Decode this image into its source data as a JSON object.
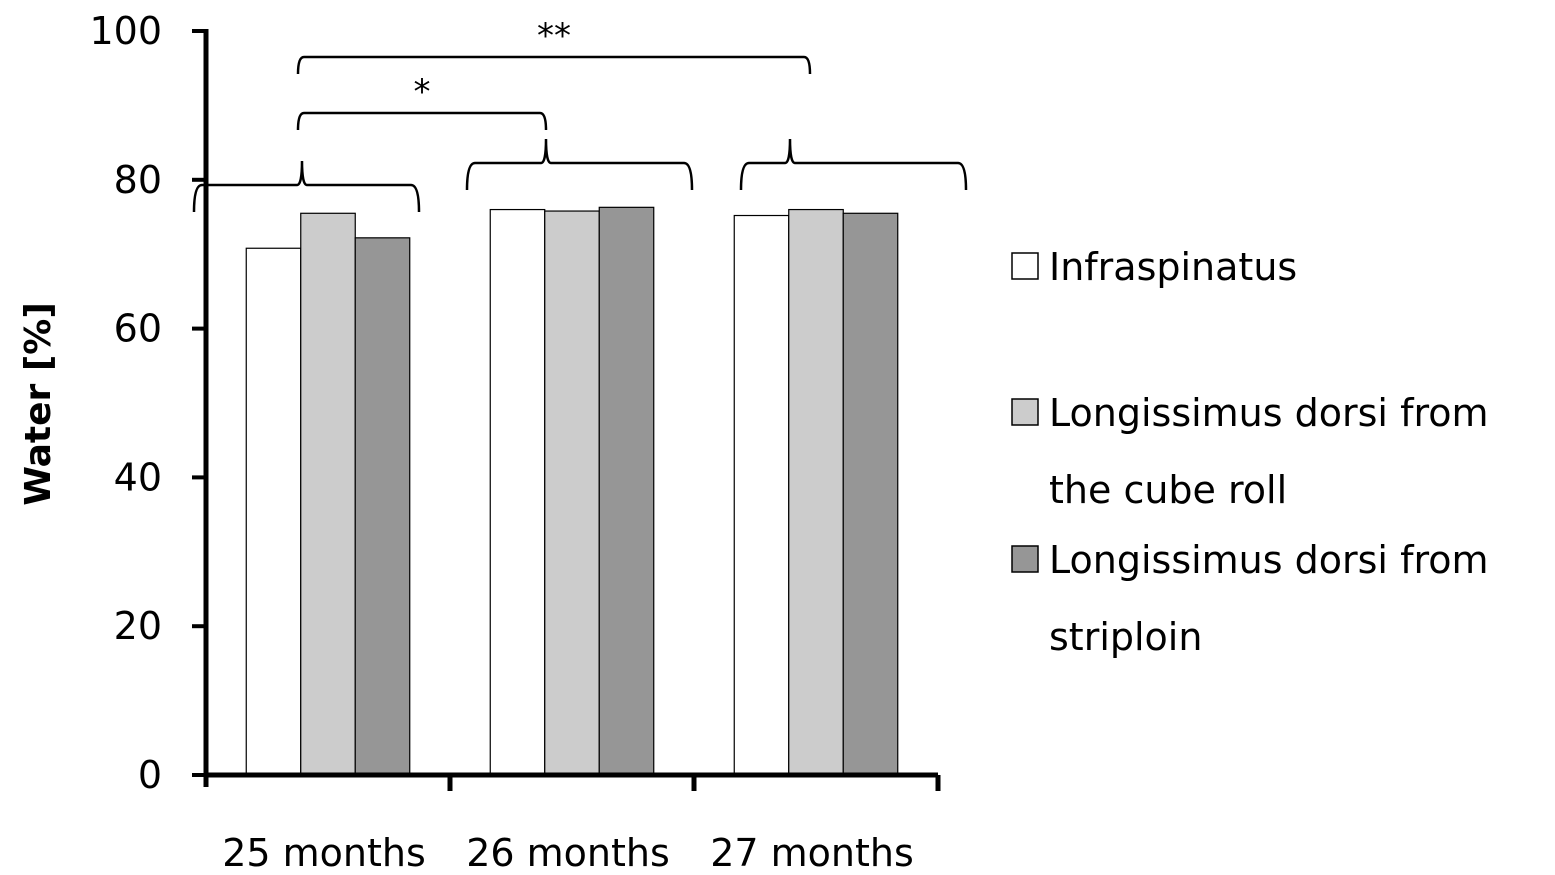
{
  "chart_data": {
    "type": "bar",
    "categories": [
      "25 months",
      "26 months",
      "27 months"
    ],
    "series": [
      {
        "name": "Infraspinatus",
        "values": [
          70.8,
          76.0,
          75.2
        ],
        "color": "#ffffff"
      },
      {
        "name": "Longissimus dorsi from the cube roll",
        "values": [
          75.5,
          75.8,
          76.0
        ],
        "color": "#cccccc"
      },
      {
        "name": "Longissimus dorsi from striploin",
        "values": [
          72.2,
          76.3,
          75.5
        ],
        "color": "#969696"
      }
    ],
    "legend_lines": [
      [
        "Infraspinatus"
      ],
      [
        "Longissimus dorsi from",
        "the cube roll"
      ],
      [
        "Longissimus dorsi from",
        "striploin"
      ]
    ],
    "ylabel": "Water [%]",
    "xlabel": "",
    "ylim": [
      0,
      100
    ],
    "yticks": [
      0,
      20,
      40,
      60,
      80,
      100
    ],
    "grid": false,
    "legend_position": "right",
    "significance": [
      {
        "label": "*",
        "from": "25 months",
        "to": "26 months"
      },
      {
        "label": "**",
        "from": "25 months",
        "to": "27 months"
      }
    ]
  }
}
